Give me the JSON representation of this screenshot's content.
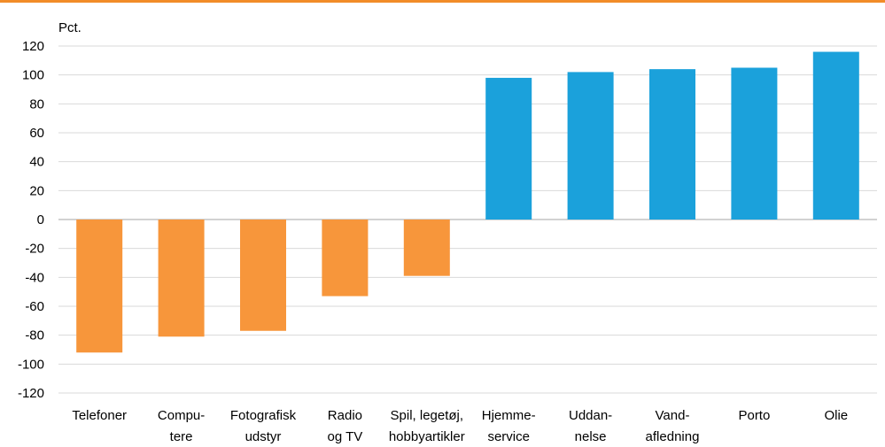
{
  "chart_data": {
    "type": "bar",
    "y_label": "Pct.",
    "categories": [
      [
        "Telefoner"
      ],
      [
        "Compu-",
        "tere"
      ],
      [
        "Fotografisk",
        "udstyr"
      ],
      [
        "Radio",
        "og TV"
      ],
      [
        "Spil, legetøj,",
        "hobbyartikler"
      ],
      [
        "Hjemme-",
        "service"
      ],
      [
        "Uddan-",
        "nelse"
      ],
      [
        "Vand-",
        "afledning"
      ],
      [
        "Porto"
      ],
      [
        "Olie"
      ]
    ],
    "values": [
      -92,
      -81,
      -77,
      -53,
      -39,
      98,
      102,
      104,
      105,
      116
    ],
    "colors": [
      "#f7963b",
      "#f7963b",
      "#f7963b",
      "#f7963b",
      "#f7963b",
      "#1ba1db",
      "#1ba1db",
      "#1ba1db",
      "#1ba1db",
      "#1ba1db"
    ],
    "ylim": [
      -120,
      120
    ],
    "yticks": [
      -120,
      -100,
      -80,
      -60,
      -40,
      -20,
      0,
      20,
      40,
      60,
      80,
      100,
      120
    ],
    "grid": true
  }
}
